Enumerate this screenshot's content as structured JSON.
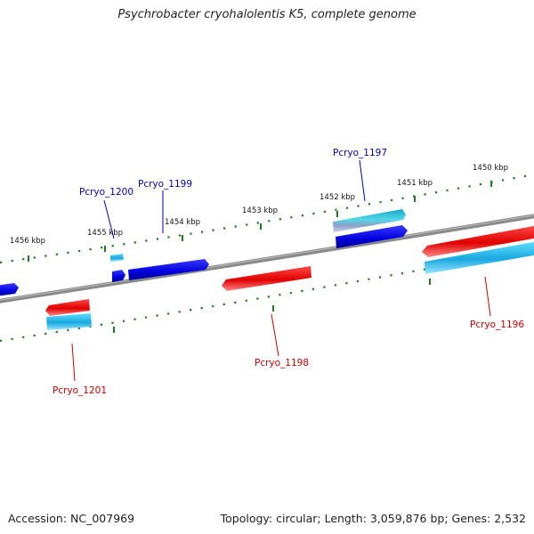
{
  "title": "Psychrobacter cryohalolentis K5, complete genome",
  "footer": {
    "accession": "Accession: NC_007969",
    "summary": "Topology: circular; Length: 3,059,876 bp; Genes: 2,532"
  },
  "colors": {
    "backbone": "#777777",
    "tick": "#1f7a1f",
    "forward_cds": "#0000dd",
    "reverse_cds": "#ee0000",
    "forward_label": "#0000bb",
    "reverse_label": "#cc0000",
    "gene_cyan": "#22c8e8"
  },
  "scale": {
    "upper": [
      "1456 kbp",
      "1455 kbp",
      "1454 kbp",
      "1453 kbp",
      "1452 kbp",
      "1451 kbp",
      "1450 kbp"
    ]
  },
  "genes": {
    "forward": [
      "Pcryo_1200",
      "Pcryo_1199",
      "Pcryo_1197"
    ],
    "reverse": [
      "Pcryo_1201",
      "Pcryo_1198",
      "Pcryo_1196"
    ]
  }
}
